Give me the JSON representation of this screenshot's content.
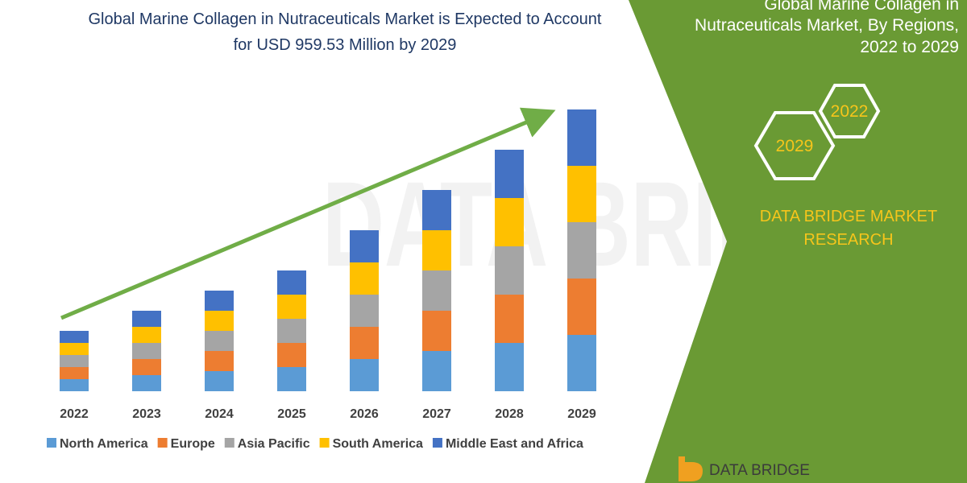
{
  "title": {
    "line1": "Global Marine Collagen in Nutraceuticals Market is Expected to Account",
    "line2": "for USD 959.53 Million by 2029"
  },
  "panel": {
    "heading_line1": "Global Marine Collagen in",
    "heading_line2": "Nutraceuticals Market, By Regions,",
    "heading_line3": "2022 to 2029",
    "badge_2022": "2022",
    "badge_2029": "2029",
    "brand_line1": "DATA BRIDGE MARKET",
    "brand_line2": "RESEARCH",
    "logo_text": "DATA BRIDGE",
    "green": "#6a9a34",
    "brand_text_color": "#f6c51b"
  },
  "watermark": {
    "text": "DATA BRIDGE"
  },
  "colors": {
    "North America": "#5b9bd5",
    "Europe": "#ed7d31",
    "Asia Pacific": "#a5a5a5",
    "South America": "#ffc000",
    "Middle East and Africa": "#4472c4",
    "arrow": "#70ad47"
  },
  "chart_data": {
    "type": "bar",
    "stacked": true,
    "categories": [
      "2022",
      "2023",
      "2024",
      "2025",
      "2026",
      "2027",
      "2028",
      "2029"
    ],
    "series": [
      {
        "name": "North America",
        "values": [
          15,
          20,
          25,
          30,
          40,
          50,
          60,
          70
        ]
      },
      {
        "name": "Europe",
        "values": [
          15,
          20,
          25,
          30,
          40,
          50,
          60,
          70
        ]
      },
      {
        "name": "Asia Pacific",
        "values": [
          15,
          20,
          25,
          30,
          40,
          50,
          60,
          70
        ]
      },
      {
        "name": "South America",
        "values": [
          15,
          20,
          25,
          30,
          40,
          50,
          60,
          70
        ]
      },
      {
        "name": "Middle East and Africa",
        "values": [
          15,
          20,
          25,
          30,
          40,
          50,
          60,
          70
        ]
      }
    ],
    "ylim": [
      0,
      350
    ],
    "xlabel": "",
    "ylabel": "",
    "grid": false,
    "legend_position": "bottom",
    "trend_arrow": true
  }
}
